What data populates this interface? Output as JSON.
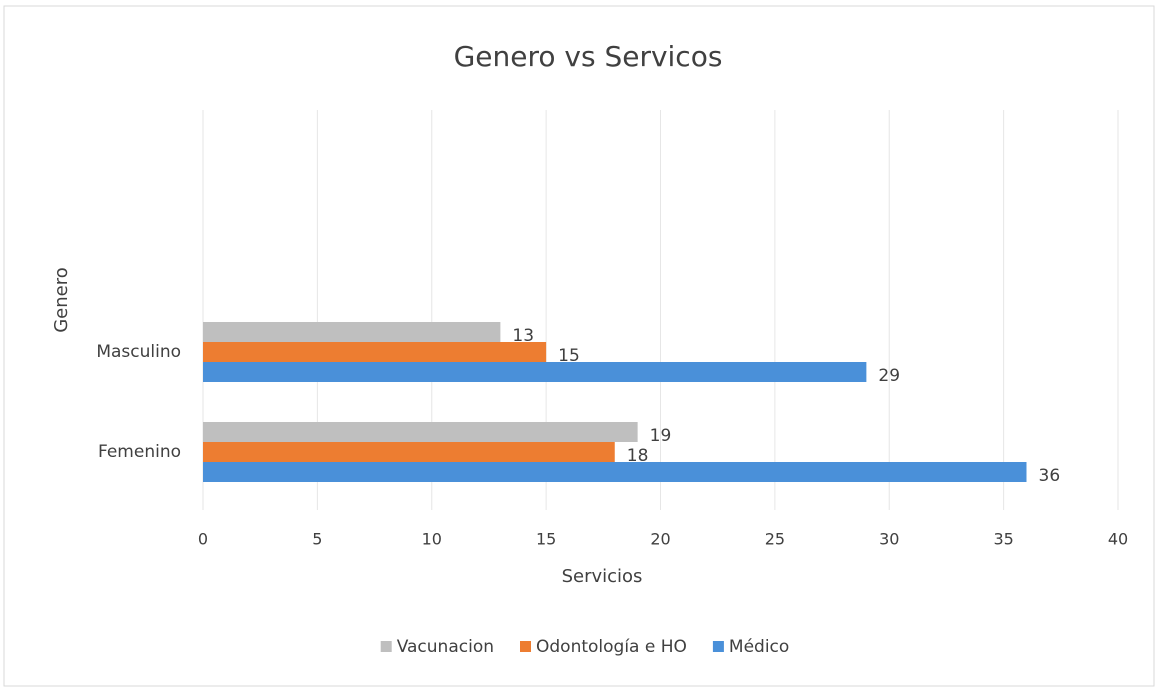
{
  "chart_data": {
    "type": "hbar",
    "title": "Genero vs Servicos",
    "x_label": "Servicios",
    "y_label": "Genero",
    "categories": [
      "Masculino",
      "Femenino"
    ],
    "series": [
      {
        "name": "Vacunacion",
        "color": "#bfbfbf",
        "values": [
          13,
          19
        ]
      },
      {
        "name": "Odontología e HO",
        "color": "#ed7d31",
        "values": [
          15,
          18
        ]
      },
      {
        "name": "Médico",
        "color": "#4a90d9",
        "values": [
          29,
          36
        ]
      }
    ],
    "xlim": [
      0,
      40
    ],
    "xticks": [
      0,
      5,
      10,
      15,
      20,
      25,
      30,
      35,
      40
    ],
    "grid": true,
    "legend": "bottom"
  }
}
